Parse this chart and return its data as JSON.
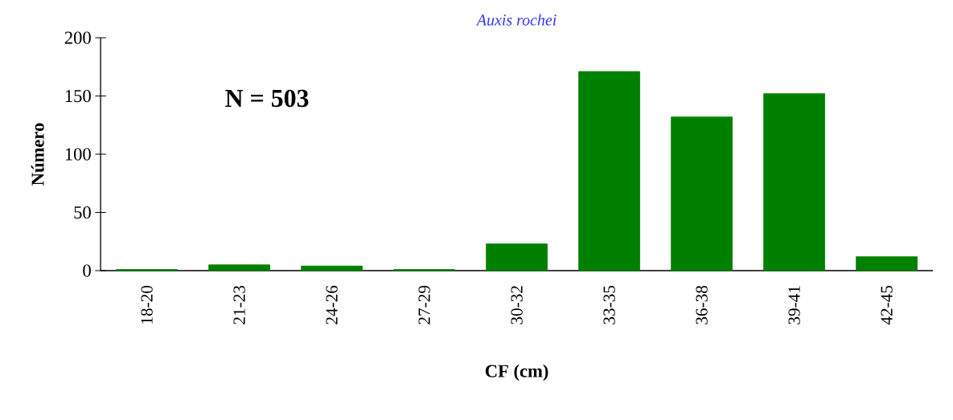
{
  "chart_data": {
    "type": "bar",
    "title": "*Auxis rochei*",
    "xlabel": "CF (cm)",
    "ylabel": "Número",
    "categories": [
      "18-20",
      "21-23",
      "24-26",
      "27-29",
      "30-32",
      "33-35",
      "36-38",
      "39-41",
      "42-45"
    ],
    "values": [
      1,
      5,
      4,
      1,
      23,
      171,
      132,
      152,
      12
    ],
    "color": "#008000",
    "ylim": [
      0,
      200
    ],
    "yticks": [
      0,
      50,
      100,
      150,
      200
    ],
    "annotations": [
      "**N = 503**"
    ]
  }
}
